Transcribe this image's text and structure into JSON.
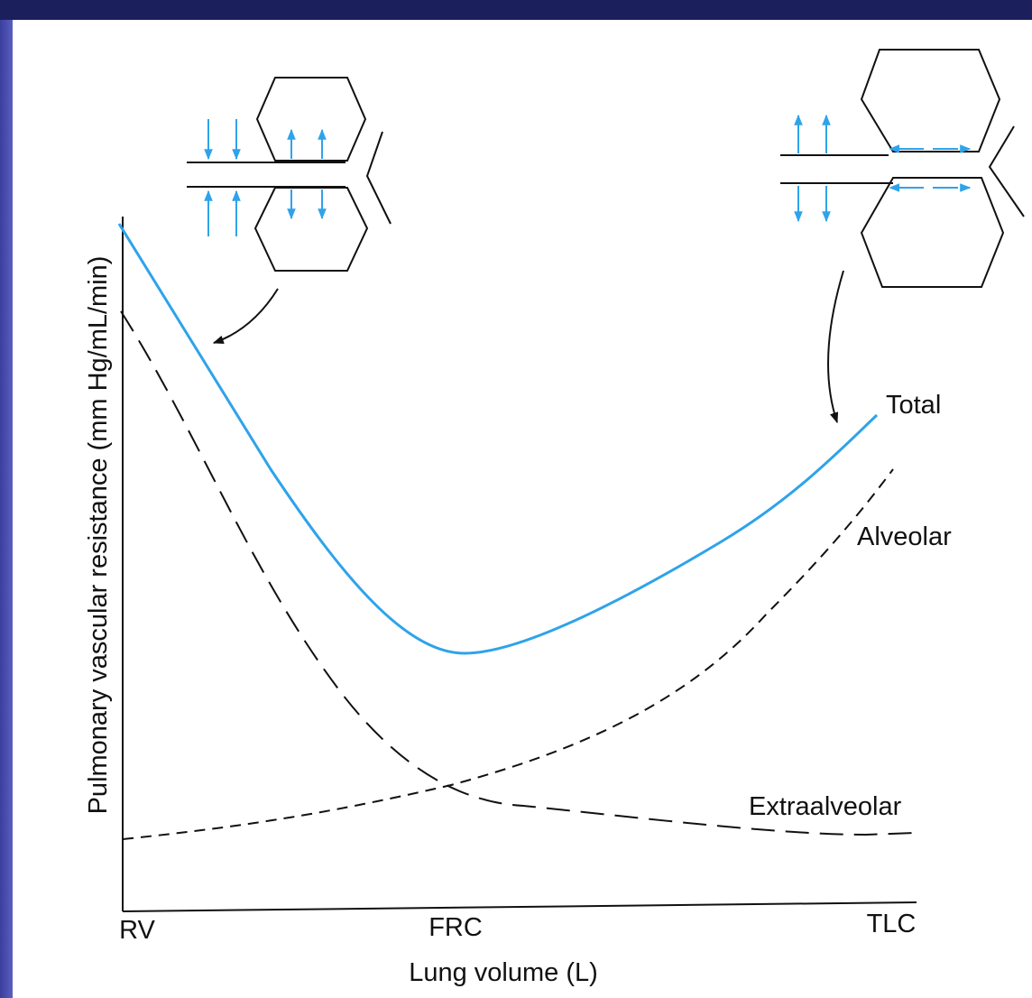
{
  "axes": {
    "y_label": "Pulmonary vascular resistance (mm Hg/mL/min)",
    "x_label": "Lung volume (L)",
    "x_marks": [
      "RV",
      "FRC",
      "TLC"
    ]
  },
  "curves": {
    "total": "Total",
    "alveolar": "Alveolar",
    "extraalveolar": "Extraalveolar"
  }
}
